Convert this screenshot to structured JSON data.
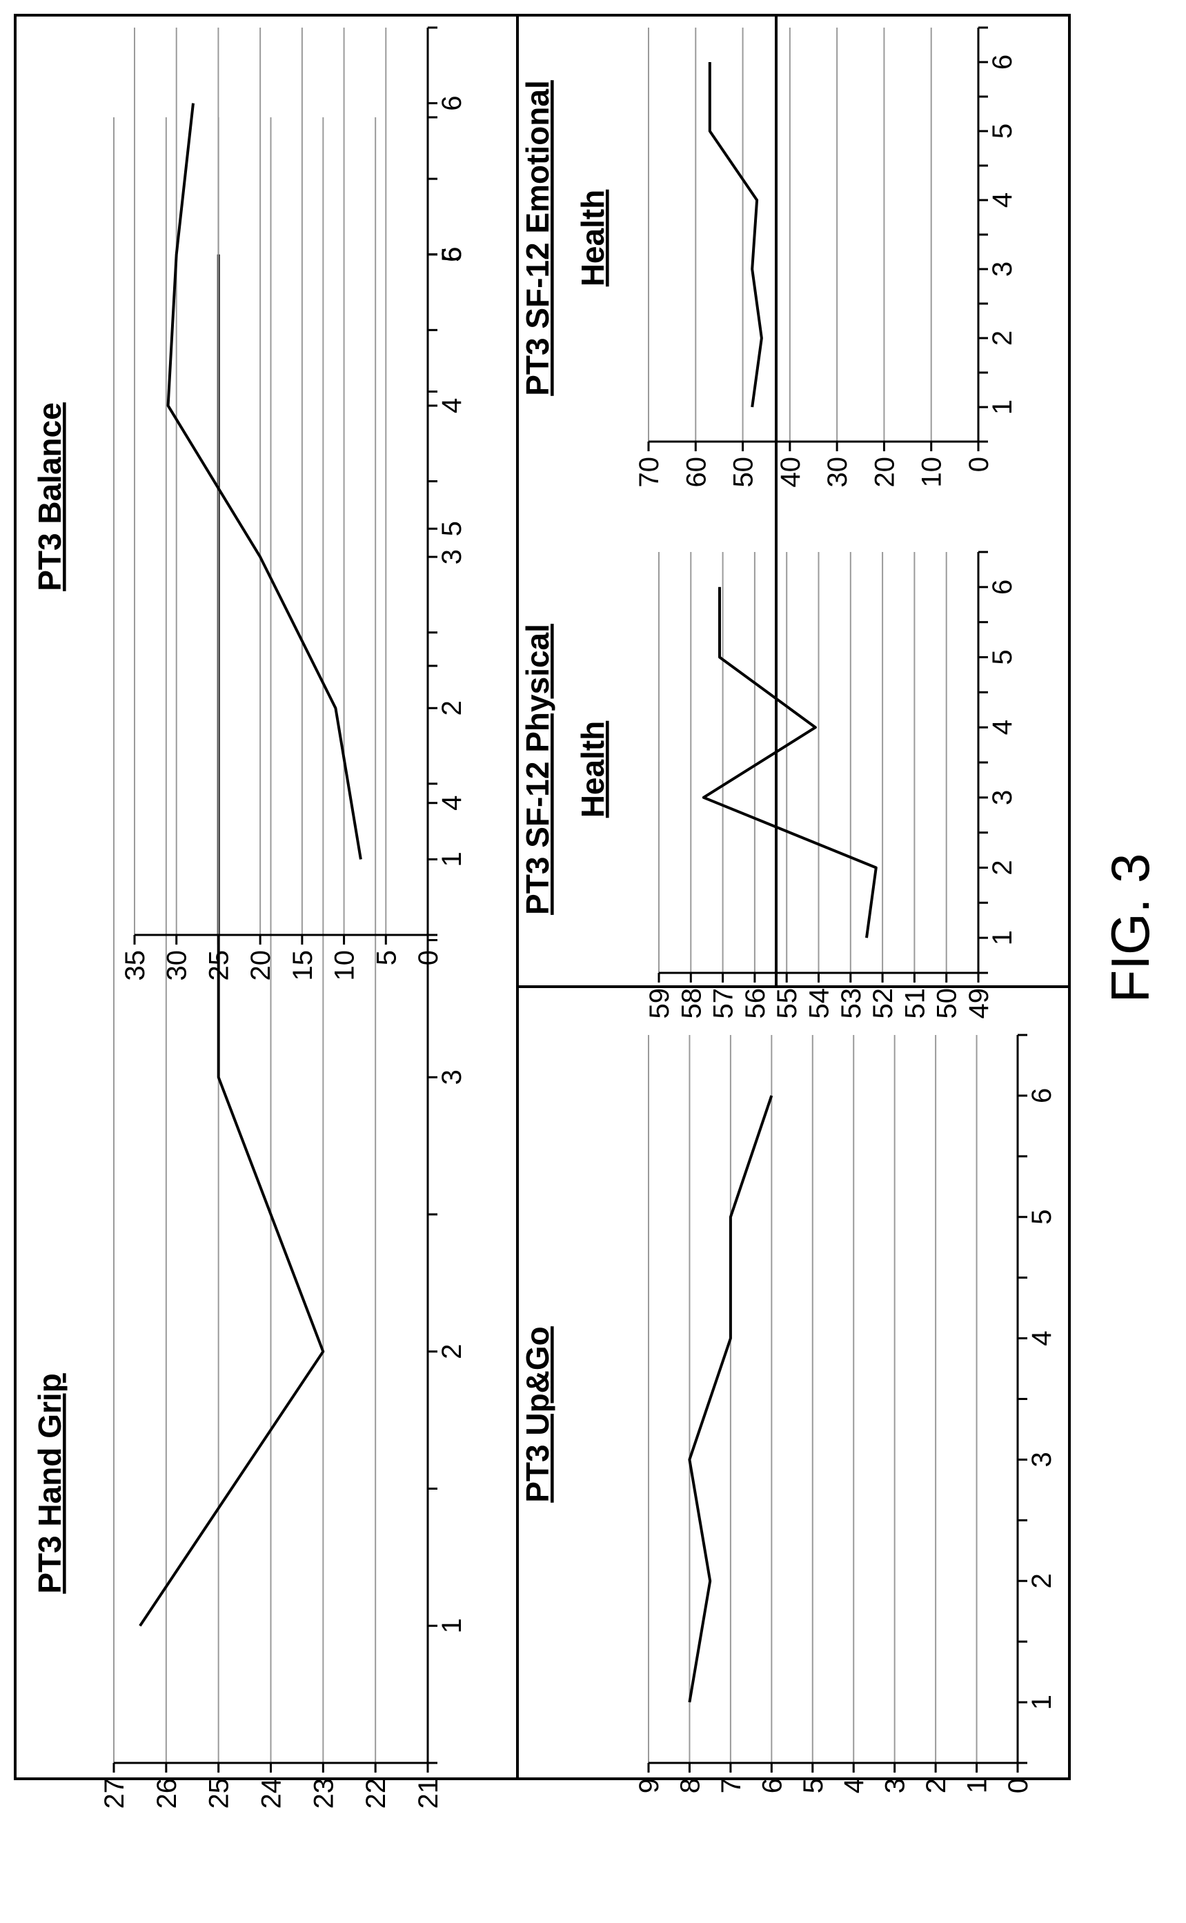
{
  "figure_label": "FIG. 3",
  "chart_data": [
    {
      "id": "hand-grip",
      "type": "line",
      "title": [
        "PT3 Hand Grip"
      ],
      "x": [
        1,
        2,
        3,
        4,
        5,
        6
      ],
      "values": [
        26.5,
        23,
        25,
        25,
        25,
        25
      ],
      "xlim": [
        0.5,
        6.5
      ],
      "ylim": [
        21,
        27
      ],
      "yticks": [
        21,
        22,
        23,
        24,
        25,
        26,
        27
      ],
      "grid": true,
      "orientation": "rotated-90-ccw"
    },
    {
      "id": "balance",
      "type": "line",
      "title": [
        "PT3 Balance"
      ],
      "x": [
        1,
        2,
        3,
        4,
        5,
        6
      ],
      "values": [
        8,
        11,
        20,
        31,
        30,
        28
      ],
      "xlim": [
        0.5,
        6.5
      ],
      "ylim": [
        0,
        35
      ],
      "yticks": [
        0,
        5,
        10,
        15,
        20,
        25,
        30,
        35
      ],
      "grid": true,
      "orientation": "rotated-90-ccw"
    },
    {
      "id": "up-go",
      "type": "line",
      "title": [
        "PT3 Up&Go"
      ],
      "x": [
        1,
        2,
        3,
        4,
        5,
        6
      ],
      "values": [
        8,
        7.5,
        8,
        7,
        7,
        6
      ],
      "xlim": [
        0.5,
        6.5
      ],
      "ylim": [
        0,
        9
      ],
      "yticks": [
        0,
        1,
        2,
        3,
        4,
        5,
        6,
        7,
        8,
        9
      ],
      "grid": true,
      "orientation": "rotated-90-ccw"
    },
    {
      "id": "sf12-physical",
      "type": "line",
      "title": [
        "PT3  SF-12 Physical",
        "Health"
      ],
      "x": [
        1,
        2,
        3,
        4,
        5,
        6
      ],
      "values": [
        52.5,
        52.2,
        57.6,
        54.1,
        57.1,
        57.1
      ],
      "xlim": [
        0.5,
        6.5
      ],
      "ylim": [
        49,
        59
      ],
      "yticks": [
        49,
        50,
        51,
        52,
        53,
        54,
        55,
        56,
        57,
        58,
        59
      ],
      "grid": true,
      "orientation": "rotated-90-ccw"
    },
    {
      "id": "sf12-emotional",
      "type": "line",
      "title": [
        "PT3 SF-12 Emotional",
        "Health"
      ],
      "x": [
        1,
        2,
        3,
        4,
        5,
        6
      ],
      "values": [
        48,
        46,
        48,
        47,
        57,
        57
      ],
      "xlim": [
        0.5,
        6.5
      ],
      "ylim": [
        0,
        70
      ],
      "yticks": [
        0,
        10,
        20,
        30,
        40,
        50,
        60,
        70
      ],
      "grid": true,
      "orientation": "rotated-90-ccw"
    }
  ]
}
